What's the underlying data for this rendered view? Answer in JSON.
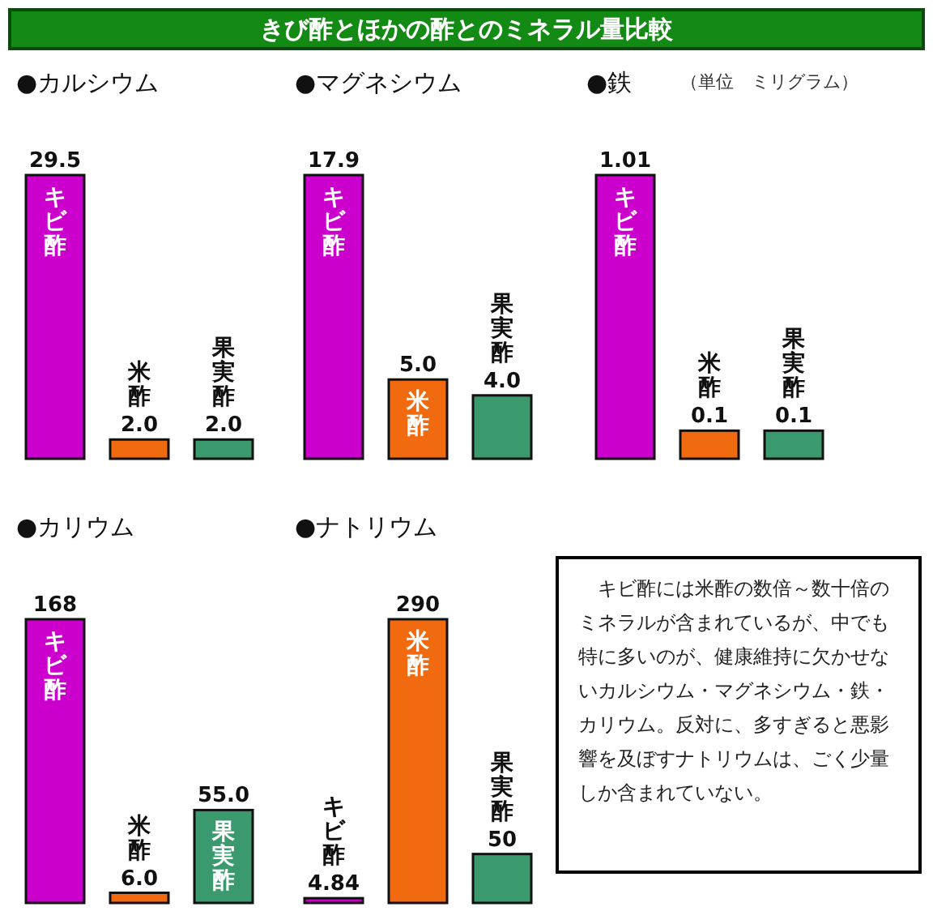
{
  "chart_data": [
    {
      "type": "other",
      "title": "きび酢とほかの酢とのミネラル量比較"
    },
    {
      "type": "bar",
      "title": "●カルシウム",
      "categories": [
        "キビ酢",
        "米酢",
        "果実酢"
      ],
      "values": [
        29.5,
        2.0,
        2.0
      ],
      "value_labels": [
        "29.5",
        "2.0",
        "2.0"
      ],
      "colors": [
        "#cc00cc",
        "#f26a10",
        "#3a9a6e"
      ]
    },
    {
      "type": "bar",
      "title": "●マグネシウム",
      "categories": [
        "キビ酢",
        "米酢",
        "果実酢"
      ],
      "values": [
        17.9,
        5.0,
        4.0
      ],
      "value_labels": [
        "17.9",
        "5.0",
        "4.0"
      ],
      "colors": [
        "#cc00cc",
        "#f26a10",
        "#3a9a6e"
      ]
    },
    {
      "type": "bar",
      "title": "●鉄",
      "annotations": [
        "（単位　ミリグラム）"
      ],
      "categories": [
        "キビ酢",
        "米酢",
        "果実酢"
      ],
      "values": [
        1.01,
        0.1,
        0.1
      ],
      "value_labels": [
        "1.01",
        "0.1",
        "0.1"
      ],
      "colors": [
        "#cc00cc",
        "#f26a10",
        "#3a9a6e"
      ]
    },
    {
      "type": "bar",
      "title": "●カリウム",
      "categories": [
        "キビ酢",
        "米酢",
        "果実酢"
      ],
      "values": [
        168,
        6.0,
        55.0
      ],
      "value_labels": [
        "168",
        "6.0",
        "55.0"
      ],
      "colors": [
        "#cc00cc",
        "#f26a10",
        "#3a9a6e"
      ]
    },
    {
      "type": "bar",
      "title": "●ナトリウム",
      "categories": [
        "キビ酢",
        "米酢",
        "果実酢"
      ],
      "values": [
        4.84,
        290,
        50
      ],
      "value_labels": [
        "4.84",
        "290",
        "50"
      ],
      "colors": [
        "#cc00cc",
        "#f26a10",
        "#3a9a6e"
      ]
    },
    {
      "type": "other",
      "annotations": [
        "キビ酢には米酢の数倍～数十倍のミネラルが含まれているが、中でも特に多いのが、健康維持に欠かせないカルシウム・マグネシウム・鉄・カリウム。反対に、多すぎると悪影響を及ぼすナトリウムは、ごく少量しか含まれていない。"
      ]
    }
  ]
}
